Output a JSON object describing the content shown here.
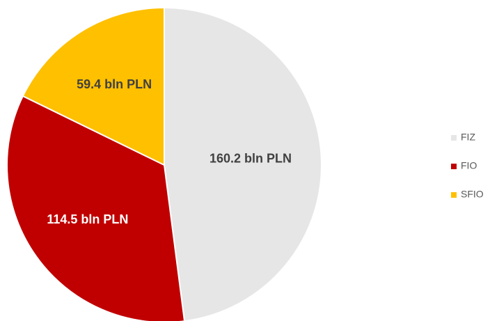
{
  "chart_data": {
    "type": "pie",
    "categories": [
      "FIZ",
      "FIO",
      "SFIO"
    ],
    "values": [
      160.2,
      114.5,
      59.4
    ],
    "value_labels": [
      "160.2 bln PLN",
      "114.5 bln PLN",
      "59.4 bln PLN"
    ],
    "colors": [
      "#e6e6e6",
      "#c00000",
      "#ffc000"
    ],
    "legend": "right"
  }
}
